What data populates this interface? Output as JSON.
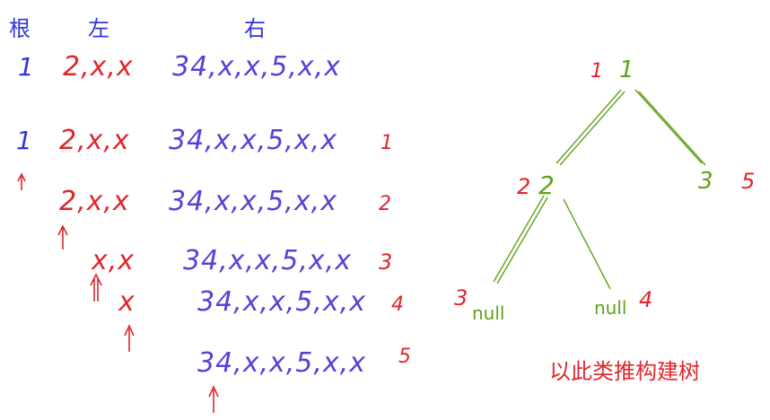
{
  "headers": {
    "root": "根",
    "left": "左",
    "right": "右"
  },
  "rows": [
    {
      "root": "1",
      "left": "2,x,x",
      "right": "34,x,x,5,x,x",
      "step": ""
    },
    {
      "root": "1",
      "left": "2,x,x",
      "right": "34,x,x,5,x,x",
      "step": "1"
    },
    {
      "root": "",
      "left": "2,x,x",
      "right": "34,x,x,5,x,x",
      "step": "2"
    },
    {
      "root": "",
      "left": "x,x",
      "right": "34,x,x,5,x,x",
      "step": "3"
    },
    {
      "root": "",
      "left": "x",
      "right": "34,x,x,5,x,x",
      "step": "4"
    },
    {
      "root": "",
      "left": "",
      "right": "34,x,x,5,x,x",
      "step": "5"
    }
  ],
  "tree": {
    "root": {
      "value": "1",
      "order": "1"
    },
    "left_child": {
      "value": "2",
      "order": "2"
    },
    "right_child": {
      "value": "3",
      "order": "5"
    },
    "left_left": {
      "value": "null",
      "order": "3"
    },
    "left_right": {
      "value": "null",
      "order": "4"
    }
  },
  "caption": "以此类推构建树",
  "colors": {
    "root_text": "#3333dd",
    "sequence_text": "#5b3fd6",
    "left_text": "#e0262c",
    "step_number": "#e0262c",
    "tree_lines": "#5fa21a",
    "caption": "#e0262c"
  }
}
